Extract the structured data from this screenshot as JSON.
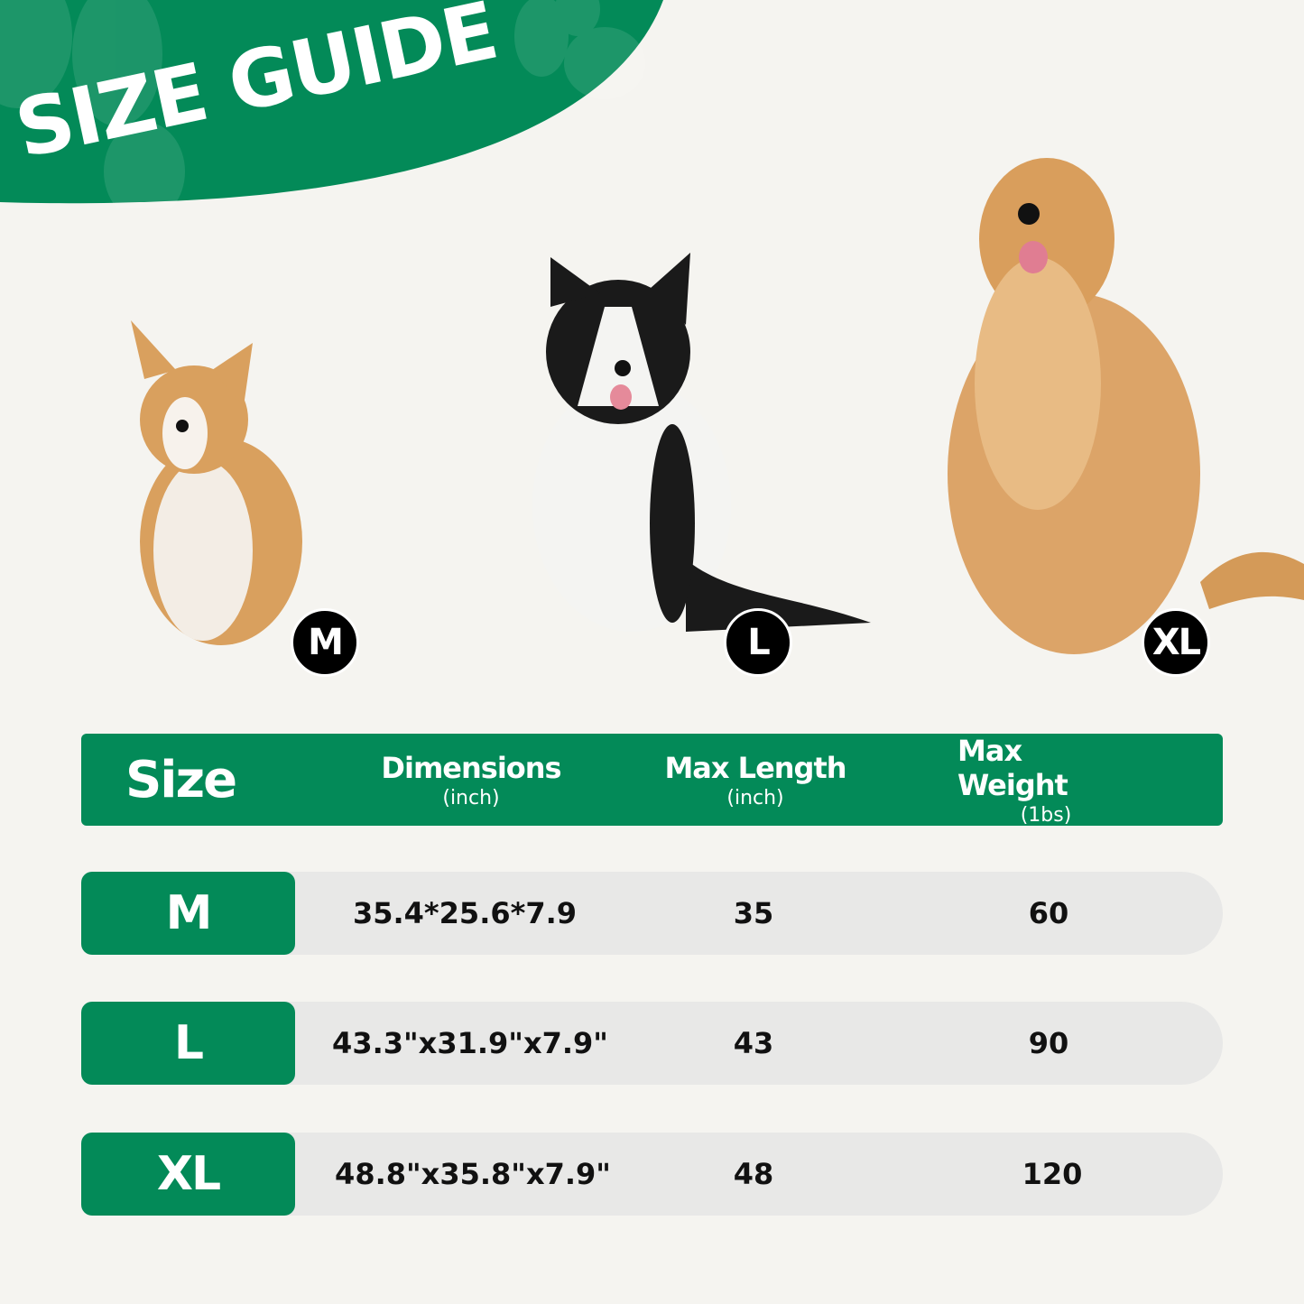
{
  "title": "SIZE GUIDE",
  "colors": {
    "brand_green": "#038a58",
    "background": "#f5f4f0",
    "row_bg": "#e8e8e7",
    "badge": "#000000"
  },
  "dogs": [
    {
      "badge": "M"
    },
    {
      "badge": "L"
    },
    {
      "badge": "XL"
    }
  ],
  "table": {
    "headers": [
      {
        "label": "Size",
        "unit": ""
      },
      {
        "label": "Dimensions",
        "unit": "(inch)"
      },
      {
        "label": "Max Length",
        "unit": "(inch)"
      },
      {
        "label": "Max Weight",
        "unit": "(1bs)"
      }
    ],
    "rows": [
      {
        "size": "M",
        "dimensions": "35.4*25.6*7.9",
        "max_length": "35",
        "max_weight": "60"
      },
      {
        "size": "L",
        "dimensions": "43.3\"x31.9\"x7.9\"",
        "max_length": "43",
        "max_weight": "90"
      },
      {
        "size": "XL",
        "dimensions": "48.8\"x35.8\"x7.9\"",
        "max_length": "48",
        "max_weight": "120"
      }
    ]
  }
}
